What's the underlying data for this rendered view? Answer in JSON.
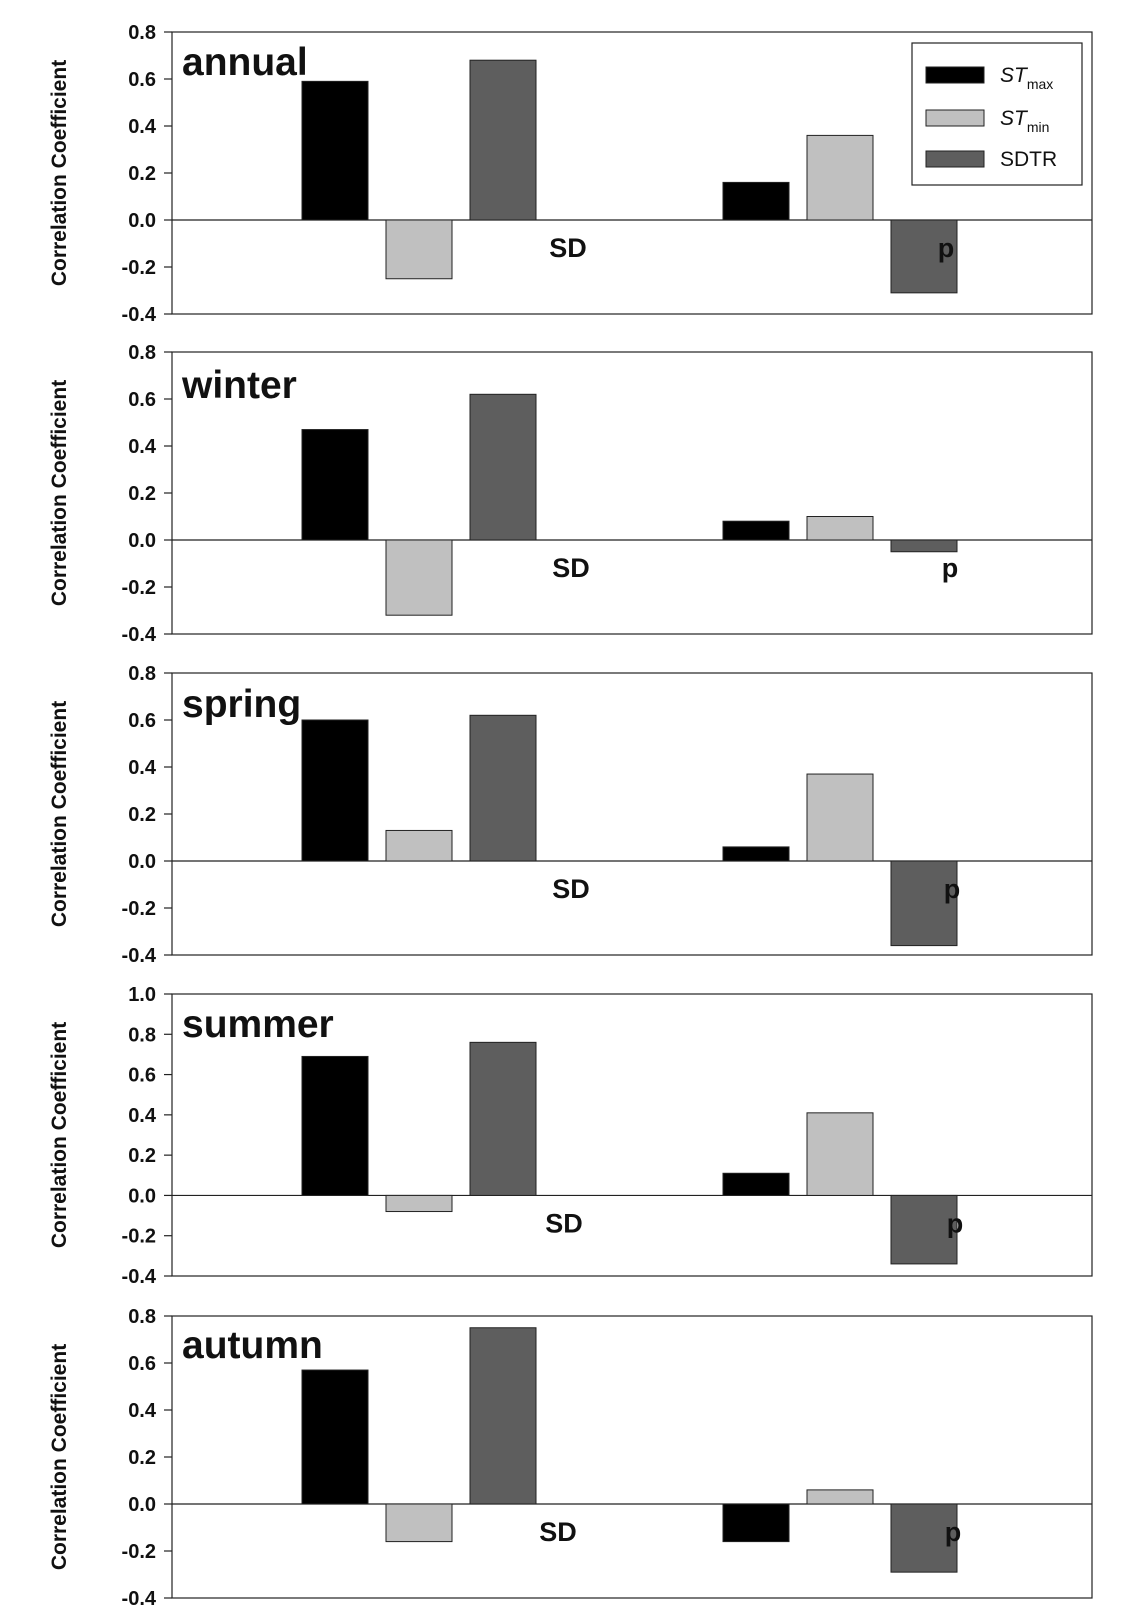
{
  "legend": [
    {
      "main": "ST",
      "sub": "max",
      "italic": true,
      "color": "#000000"
    },
    {
      "main": "ST",
      "sub": "min",
      "italic": true,
      "color": "#c0c0c0"
    },
    {
      "main": "SDTR",
      "sub": "",
      "italic": false,
      "color": "#5e5e5e"
    }
  ],
  "chart_data": [
    {
      "type": "bar",
      "title": "annual",
      "ylabel": "Correlation Coefficient",
      "ylim": [
        -0.4,
        0.8
      ],
      "yticks": [
        "0.8",
        "0.6",
        "0.4",
        "0.2",
        "0.0",
        "-0.2",
        "-0.4"
      ],
      "groups": [
        "SD",
        "p"
      ],
      "series": [
        {
          "name": "STmax",
          "values": [
            0.59,
            0.16
          ]
        },
        {
          "name": "STmin",
          "values": [
            -0.25,
            0.36
          ]
        },
        {
          "name": "SDTR",
          "values": [
            0.68,
            -0.31
          ]
        }
      ]
    },
    {
      "type": "bar",
      "title": "winter",
      "ylabel": "Correlation Coefficient",
      "ylim": [
        -0.4,
        0.8
      ],
      "yticks": [
        "0.8",
        "0.6",
        "0.4",
        "0.2",
        "0.0",
        "-0.2",
        "-0.4"
      ],
      "groups": [
        "SD",
        "p"
      ],
      "series": [
        {
          "name": "STmax",
          "values": [
            0.47,
            0.08
          ]
        },
        {
          "name": "STmin",
          "values": [
            -0.32,
            0.1
          ]
        },
        {
          "name": "SDTR",
          "values": [
            0.62,
            -0.05
          ]
        }
      ]
    },
    {
      "type": "bar",
      "title": "spring",
      "ylabel": "Correlation Coefficient",
      "ylim": [
        -0.4,
        0.8
      ],
      "yticks": [
        "0.8",
        "0.6",
        "0.4",
        "0.2",
        "0.0",
        "-0.2",
        "-0.4"
      ],
      "groups": [
        "SD",
        "p"
      ],
      "series": [
        {
          "name": "STmax",
          "values": [
            0.6,
            0.06
          ]
        },
        {
          "name": "STmin",
          "values": [
            0.13,
            0.37
          ]
        },
        {
          "name": "SDTR",
          "values": [
            0.62,
            -0.36
          ]
        }
      ]
    },
    {
      "type": "bar",
      "title": "summer",
      "ylabel": "Correlation Coefficient",
      "ylim": [
        -0.4,
        1.0
      ],
      "yticks": [
        "1.0",
        "0.8",
        "0.6",
        "0.4",
        "0.2",
        "0.0",
        "-0.2",
        "-0.4"
      ],
      "groups": [
        "SD",
        "p"
      ],
      "series": [
        {
          "name": "STmax",
          "values": [
            0.69,
            0.11
          ]
        },
        {
          "name": "STmin",
          "values": [
            -0.08,
            0.41
          ]
        },
        {
          "name": "SDTR",
          "values": [
            0.76,
            -0.34
          ]
        }
      ]
    },
    {
      "type": "bar",
      "title": "autumn",
      "ylabel": "Correlation Coefficient",
      "ylim": [
        -0.4,
        0.8
      ],
      "yticks": [
        "0.8",
        "0.6",
        "0.4",
        "0.2",
        "0.0",
        "-0.2",
        "-0.4"
      ],
      "groups": [
        "SD",
        "p"
      ],
      "series": [
        {
          "name": "STmax",
          "values": [
            0.57,
            -0.16
          ]
        },
        {
          "name": "STmin",
          "values": [
            -0.16,
            0.06
          ]
        },
        {
          "name": "SDTR",
          "values": [
            0.75,
            -0.29
          ]
        }
      ]
    }
  ]
}
